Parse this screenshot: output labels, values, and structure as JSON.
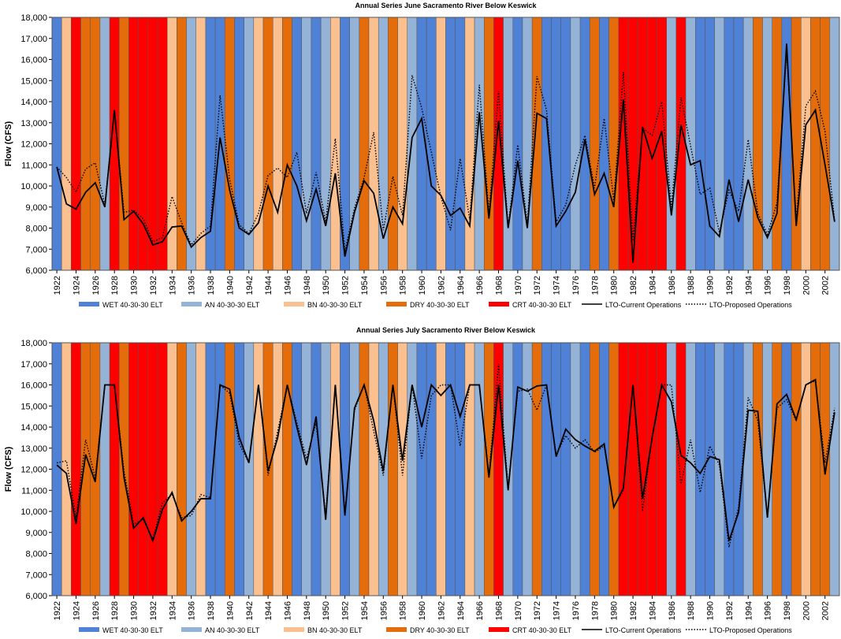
{
  "legend": [
    {
      "key": "WET",
      "label": "WET 40-30-30 ELT",
      "color": "#4f81d6",
      "kind": "swatch"
    },
    {
      "key": "AN",
      "label": "AN  40-30-30 ELT",
      "color": "#95b3d7",
      "kind": "swatch"
    },
    {
      "key": "BN",
      "label": "BN  40-30-30 ELT",
      "color": "#fac090",
      "kind": "swatch"
    },
    {
      "key": "DRY",
      "label": "DRY 40-30-30 ELT",
      "color": "#e46c0a",
      "kind": "swatch"
    },
    {
      "key": "CRT",
      "label": "CRT 40-30-30 ELT",
      "color": "#ff0000",
      "kind": "swatch"
    },
    {
      "key": "CUR",
      "label": "LTO-Current Operations",
      "color": "#000000",
      "kind": "solid"
    },
    {
      "key": "PRO",
      "label": "LTO-Proposed Operations",
      "color": "#000000",
      "kind": "dotted"
    }
  ],
  "chart_data": [
    {
      "type": "line",
      "title": "Annual Series June Sacramento River Below Keswick",
      "ylabel": "Flow (CFS)",
      "xlabel": "",
      "ylim": [
        6000,
        18000
      ],
      "y_ticks": [
        "6,000",
        "7,000",
        "8,000",
        "9,000",
        "10,000",
        "11,000",
        "12,000",
        "13,000",
        "14,000",
        "15,000",
        "16,000",
        "17,000",
        "18,000"
      ],
      "x_start": 1922,
      "x_end": 2003,
      "x_tick_labels": [
        "1922",
        "1924",
        "1926",
        "1928",
        "1930",
        "1932",
        "1934",
        "1936",
        "1938",
        "1940",
        "1942",
        "1944",
        "1946",
        "1948",
        "1950",
        "1952",
        "1954",
        "1956",
        "1958",
        "1960",
        "1962",
        "1964",
        "1966",
        "1968",
        "1970",
        "1972",
        "1974",
        "1976",
        "1978",
        "1980",
        "1982",
        "1984",
        "1986",
        "1988",
        "1990",
        "1992",
        "1994",
        "1996",
        "1998",
        "2000",
        "2002"
      ],
      "year_types": [
        "WET",
        "BN",
        "CRT",
        "DRY",
        "DRY",
        "AN",
        "CRT",
        "DRY",
        "CRT",
        "CRT",
        "CRT",
        "CRT",
        "BN",
        "DRY",
        "AN",
        "BN",
        "WET",
        "WET",
        "DRY",
        "WET",
        "AN",
        "BN",
        "DRY",
        "BN",
        "DRY",
        "WET",
        "AN",
        "WET",
        "AN",
        "BN",
        "WET",
        "AN",
        "DRY",
        "BN",
        "AN",
        "DRY",
        "BN",
        "AN",
        "WET",
        "WET",
        "BN",
        "WET",
        "WET",
        "BN",
        "AN",
        "DRY",
        "CRT",
        "AN",
        "WET",
        "AN",
        "DRY",
        "WET",
        "WET",
        "WET",
        "AN",
        "WET",
        "DRY",
        "WET",
        "DRY",
        "CRT",
        "CRT",
        "CRT",
        "CRT",
        "CRT",
        "AN",
        "CRT",
        "AN",
        "WET",
        "WET",
        "AN",
        "WET",
        "WET",
        "AN",
        "DRY",
        "AN",
        "DRY",
        "WET",
        "DRY",
        "BN",
        "DRY",
        "DRY",
        "AN"
      ],
      "series": [
        {
          "name": "LTO-Current Operations",
          "style": "solid",
          "values": [
            10900,
            9150,
            8900,
            9700,
            10150,
            9000,
            13600,
            8400,
            8800,
            8200,
            7200,
            7350,
            8050,
            8100,
            7100,
            7550,
            7850,
            12300,
            9800,
            8000,
            7700,
            8250,
            10000,
            8750,
            11000,
            10000,
            8350,
            9850,
            8100,
            10600,
            6650,
            8750,
            10250,
            9650,
            7500,
            9000,
            8200,
            12300,
            13200,
            10000,
            9550,
            8600,
            8950,
            8100,
            13500,
            8450,
            13100,
            8000,
            11200,
            8000,
            13450,
            13200,
            8100,
            8800,
            9700,
            12200,
            9600,
            10600,
            9000,
            14100,
            6350,
            12800,
            11300,
            12600,
            8600,
            12900,
            11000,
            11200,
            8100,
            7600,
            10300,
            8300,
            10300,
            8500,
            7550,
            8700,
            16750,
            8100,
            12900,
            13600,
            11000,
            8300
          ]
        },
        {
          "name": "LTO-Proposed Operations",
          "style": "dotted",
          "values": [
            10900,
            10400,
            9700,
            10800,
            11100,
            9100,
            13600,
            8750,
            8850,
            8450,
            7350,
            7550,
            9500,
            8250,
            7200,
            7750,
            8100,
            14300,
            10300,
            8150,
            7750,
            8700,
            10500,
            10850,
            10400,
            11600,
            8700,
            10650,
            8300,
            12250,
            6900,
            8950,
            10400,
            12550,
            7900,
            10450,
            8600,
            15250,
            13700,
            11600,
            9500,
            7900,
            11300,
            8400,
            14800,
            8700,
            14500,
            8050,
            11950,
            8200,
            15200,
            13600,
            8300,
            9100,
            11000,
            12400,
            9900,
            13200,
            9300,
            15400,
            7400,
            12750,
            12400,
            14000,
            9000,
            14200,
            11900,
            9600,
            9900,
            7800,
            9800,
            8800,
            12200,
            8700,
            7700,
            9200,
            16450,
            8400,
            13800,
            14500,
            12600,
            8350
          ]
        }
      ]
    },
    {
      "type": "line",
      "title": "Annual Series July Sacramento River Below Keswick",
      "ylabel": "Flow (CFS)",
      "xlabel": "",
      "ylim": [
        6000,
        18000
      ],
      "y_ticks": [
        "6,000",
        "7,000",
        "8,000",
        "9,000",
        "10,000",
        "11,000",
        "12,000",
        "13,000",
        "14,000",
        "15,000",
        "16,000",
        "17,000",
        "18,000"
      ],
      "x_start": 1922,
      "x_end": 2003,
      "x_tick_labels": [
        "1922",
        "1924",
        "1926",
        "1928",
        "1930",
        "1932",
        "1934",
        "1936",
        "1938",
        "1940",
        "1942",
        "1944",
        "1946",
        "1948",
        "1950",
        "1952",
        "1954",
        "1956",
        "1958",
        "1960",
        "1962",
        "1964",
        "1966",
        "1968",
        "1970",
        "1972",
        "1974",
        "1976",
        "1978",
        "1980",
        "1982",
        "1984",
        "1986",
        "1988",
        "1990",
        "1992",
        "1994",
        "1996",
        "1998",
        "2000",
        "2002"
      ],
      "year_types": [
        "WET",
        "BN",
        "CRT",
        "DRY",
        "DRY",
        "AN",
        "CRT",
        "DRY",
        "CRT",
        "CRT",
        "CRT",
        "CRT",
        "BN",
        "DRY",
        "AN",
        "BN",
        "WET",
        "WET",
        "DRY",
        "WET",
        "AN",
        "BN",
        "DRY",
        "BN",
        "DRY",
        "WET",
        "AN",
        "WET",
        "AN",
        "BN",
        "WET",
        "AN",
        "DRY",
        "BN",
        "AN",
        "DRY",
        "BN",
        "AN",
        "WET",
        "WET",
        "BN",
        "WET",
        "WET",
        "BN",
        "AN",
        "DRY",
        "CRT",
        "AN",
        "WET",
        "AN",
        "DRY",
        "WET",
        "WET",
        "WET",
        "AN",
        "WET",
        "DRY",
        "WET",
        "DRY",
        "CRT",
        "CRT",
        "CRT",
        "CRT",
        "CRT",
        "AN",
        "CRT",
        "AN",
        "WET",
        "WET",
        "AN",
        "WET",
        "WET",
        "AN",
        "DRY",
        "AN",
        "DRY",
        "WET",
        "DRY",
        "BN",
        "DRY",
        "DRY",
        "AN"
      ],
      "series": [
        {
          "name": "LTO-Current Operations",
          "style": "solid",
          "values": [
            12200,
            11800,
            9400,
            12700,
            11400,
            16000,
            16000,
            11600,
            9200,
            9700,
            8600,
            10100,
            10900,
            9550,
            10000,
            10600,
            10600,
            16000,
            15800,
            13500,
            12300,
            16000,
            11900,
            13500,
            16000,
            14000,
            12200,
            14500,
            9600,
            16000,
            9800,
            14900,
            16000,
            14300,
            11900,
            16000,
            12400,
            16000,
            14000,
            16000,
            15500,
            16000,
            14500,
            16000,
            16000,
            11600,
            16000,
            11000,
            15900,
            15700,
            15950,
            16000,
            12600,
            13900,
            13400,
            13100,
            12850,
            13200,
            10200,
            11100,
            16000,
            10600,
            13500,
            16000,
            15200,
            12650,
            12300,
            11800,
            12600,
            12450,
            8600,
            9950,
            14800,
            14750,
            9700,
            15100,
            15550,
            14350,
            16000,
            16250,
            11750,
            14700
          ]
        },
        {
          "name": "LTO-Proposed Operations",
          "style": "dotted",
          "values": [
            12300,
            12400,
            9700,
            13400,
            11600,
            16000,
            16000,
            11900,
            9400,
            9600,
            8700,
            10400,
            10800,
            9700,
            9800,
            10800,
            10650,
            16000,
            15600,
            13200,
            12300,
            16000,
            11700,
            13800,
            16000,
            14200,
            12500,
            14200,
            9800,
            16000,
            9900,
            14800,
            16000,
            13800,
            11700,
            16000,
            11700,
            16000,
            12500,
            15500,
            16000,
            16000,
            13100,
            16000,
            16000,
            11700,
            17000,
            11100,
            15700,
            15800,
            14800,
            16000,
            12700,
            13600,
            13000,
            13400,
            12800,
            13100,
            10200,
            11000,
            16000,
            10000,
            13600,
            16000,
            16000,
            11300,
            13400,
            10900,
            13100,
            12200,
            8300,
            10200,
            15400,
            14300,
            9700,
            14900,
            15300,
            14300,
            16000,
            16200,
            12300,
            14900
          ]
        }
      ]
    }
  ]
}
